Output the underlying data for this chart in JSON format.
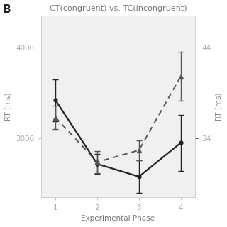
{
  "title": "CT(congruent) vs. TC(incongruent)",
  "xlabel": "Experimental Phase",
  "ylabel_left": "RT (ms)",
  "ylabel_right": "RT (ms)",
  "panel_label": "B",
  "phases": [
    1,
    2,
    3,
    4
  ],
  "solid_line": {
    "y": [
      3420,
      2720,
      2580,
      2950
    ],
    "yerr": [
      230,
      110,
      180,
      310
    ],
    "color": "#222222",
    "linestyle": "solid",
    "linewidth": 1.6,
    "marker": "o",
    "markersize": 3.5,
    "label": "CT(congruent)"
  },
  "dashed_line": {
    "y": [
      3230,
      2740,
      2870,
      3680
    ],
    "yerr": [
      130,
      120,
      110,
      270
    ],
    "color": "#555555",
    "linestyle": "dashed",
    "linewidth": 1.4,
    "marker": "^",
    "markersize": 4,
    "label": "TC(incongruent)"
  },
  "xlim": [
    0.65,
    4.35
  ],
  "ylim_left": [
    2350,
    4350
  ],
  "yticks_left": [
    3000,
    4000
  ],
  "yticks_right_labels": [
    "34",
    "44"
  ],
  "yticks_right_pos": [
    3000,
    4000
  ],
  "background_color": "#f0f0f0",
  "figure_color": "#ffffff",
  "capsize": 3,
  "xticks": [
    1,
    2,
    3,
    4
  ]
}
